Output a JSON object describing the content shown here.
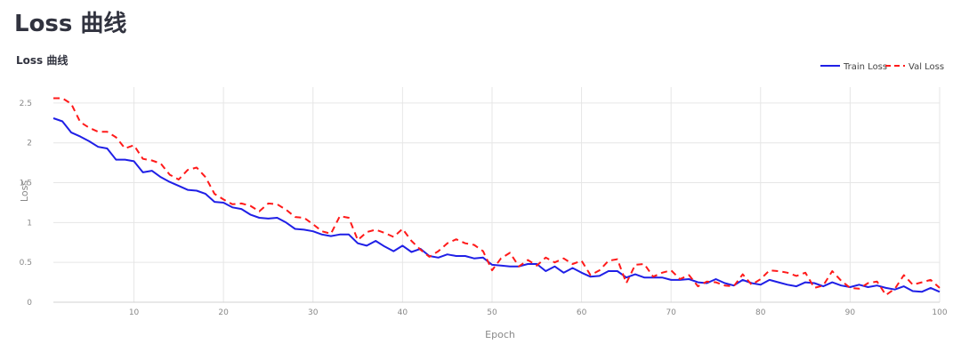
{
  "page": {
    "title": "Loss 曲线"
  },
  "chart_data": {
    "type": "line",
    "title": "Loss 曲线",
    "xlabel": "Epoch",
    "ylabel": "Loss",
    "xlim": [
      1,
      100
    ],
    "ylim": [
      0,
      2.7
    ],
    "xticks": [
      10,
      20,
      30,
      40,
      50,
      60,
      70,
      80,
      90,
      100
    ],
    "yticks": [
      0,
      0.5,
      1,
      1.5,
      2,
      2.5
    ],
    "ytick_labels": [
      "0",
      "0.5",
      "1",
      "1.5",
      "2",
      "2.5"
    ],
    "grid": true,
    "legend_position": "top-right",
    "x": [
      1,
      2,
      3,
      4,
      5,
      6,
      7,
      8,
      9,
      10,
      11,
      12,
      13,
      14,
      15,
      16,
      17,
      18,
      19,
      20,
      21,
      22,
      23,
      24,
      25,
      26,
      27,
      28,
      29,
      30,
      31,
      32,
      33,
      34,
      35,
      36,
      37,
      38,
      39,
      40,
      41,
      42,
      43,
      44,
      45,
      46,
      47,
      48,
      49,
      50,
      51,
      52,
      53,
      54,
      55,
      56,
      57,
      58,
      59,
      60,
      61,
      62,
      63,
      64,
      65,
      66,
      67,
      68,
      69,
      70,
      71,
      72,
      73,
      74,
      75,
      76,
      77,
      78,
      79,
      80,
      81,
      82,
      83,
      84,
      85,
      86,
      87,
      88,
      89,
      90,
      91,
      92,
      93,
      94,
      95,
      96,
      97,
      98,
      99,
      100
    ],
    "series": [
      {
        "name": "Train Loss",
        "color": "#1f1fe6",
        "dash": "solid",
        "values": [
          2.31,
          2.27,
          2.13,
          2.08,
          2.02,
          1.95,
          1.93,
          1.79,
          1.79,
          1.77,
          1.63,
          1.65,
          1.57,
          1.51,
          1.46,
          1.41,
          1.4,
          1.36,
          1.26,
          1.25,
          1.19,
          1.17,
          1.1,
          1.06,
          1.05,
          1.06,
          1.0,
          0.92,
          0.91,
          0.89,
          0.85,
          0.83,
          0.85,
          0.85,
          0.74,
          0.71,
          0.77,
          0.7,
          0.64,
          0.71,
          0.63,
          0.67,
          0.58,
          0.56,
          0.6,
          0.58,
          0.58,
          0.55,
          0.56,
          0.47,
          0.46,
          0.45,
          0.45,
          0.48,
          0.48,
          0.39,
          0.45,
          0.37,
          0.43,
          0.37,
          0.32,
          0.33,
          0.39,
          0.39,
          0.31,
          0.35,
          0.31,
          0.31,
          0.31,
          0.28,
          0.28,
          0.29,
          0.25,
          0.24,
          0.29,
          0.24,
          0.21,
          0.28,
          0.24,
          0.22,
          0.28,
          0.25,
          0.22,
          0.2,
          0.25,
          0.24,
          0.2,
          0.25,
          0.21,
          0.19,
          0.22,
          0.19,
          0.21,
          0.18,
          0.16,
          0.2,
          0.14,
          0.13,
          0.18,
          0.13
        ]
      },
      {
        "name": "Val Loss",
        "color": "#ff1a1a",
        "dash": "dashed",
        "values": [
          2.56,
          2.56,
          2.49,
          2.26,
          2.19,
          2.14,
          2.14,
          2.07,
          1.93,
          1.97,
          1.8,
          1.78,
          1.74,
          1.6,
          1.54,
          1.66,
          1.69,
          1.57,
          1.36,
          1.29,
          1.23,
          1.24,
          1.21,
          1.14,
          1.24,
          1.23,
          1.16,
          1.07,
          1.06,
          0.98,
          0.89,
          0.86,
          1.08,
          1.06,
          0.78,
          0.88,
          0.91,
          0.87,
          0.82,
          0.92,
          0.77,
          0.66,
          0.57,
          0.64,
          0.74,
          0.79,
          0.74,
          0.72,
          0.64,
          0.4,
          0.55,
          0.62,
          0.45,
          0.53,
          0.46,
          0.56,
          0.5,
          0.55,
          0.48,
          0.52,
          0.34,
          0.4,
          0.52,
          0.54,
          0.24,
          0.47,
          0.48,
          0.32,
          0.37,
          0.4,
          0.29,
          0.34,
          0.2,
          0.26,
          0.25,
          0.21,
          0.2,
          0.35,
          0.22,
          0.29,
          0.4,
          0.39,
          0.37,
          0.33,
          0.37,
          0.18,
          0.21,
          0.39,
          0.27,
          0.18,
          0.17,
          0.24,
          0.26,
          0.09,
          0.17,
          0.34,
          0.22,
          0.25,
          0.28,
          0.18
        ]
      }
    ]
  }
}
